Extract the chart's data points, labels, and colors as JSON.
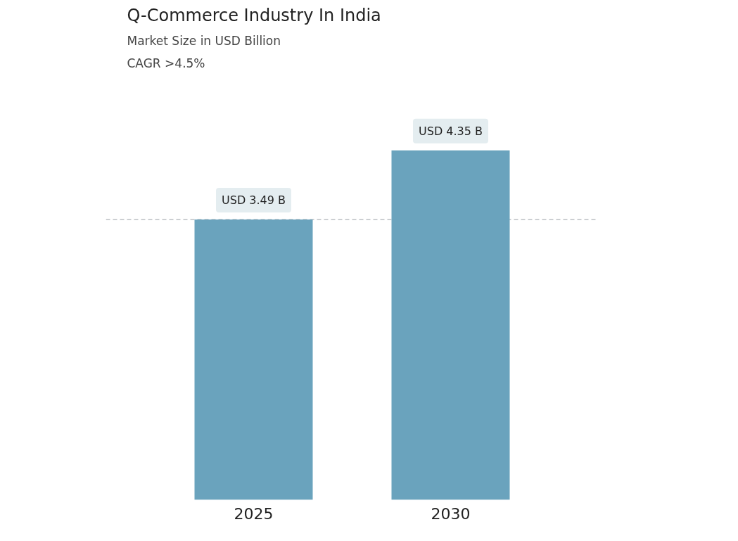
{
  "chart_data": {
    "type": "bar",
    "title": "Q-Commerce Industry In India",
    "subtitle": "Market Size in USD Billion",
    "annotations": [
      "CAGR >4.5%"
    ],
    "categories": [
      "2025",
      "2030"
    ],
    "values": [
      3.49,
      4.35
    ],
    "color": "#6aa3bd",
    "value_labels": [
      "USD 3.49 B",
      "USD 4.35 B"
    ],
    "ref_lines": [
      {
        "axis": "y",
        "value": 3.49,
        "color": "#9aa0a6",
        "line_style": "dashed"
      }
    ],
    "grid": false
  }
}
